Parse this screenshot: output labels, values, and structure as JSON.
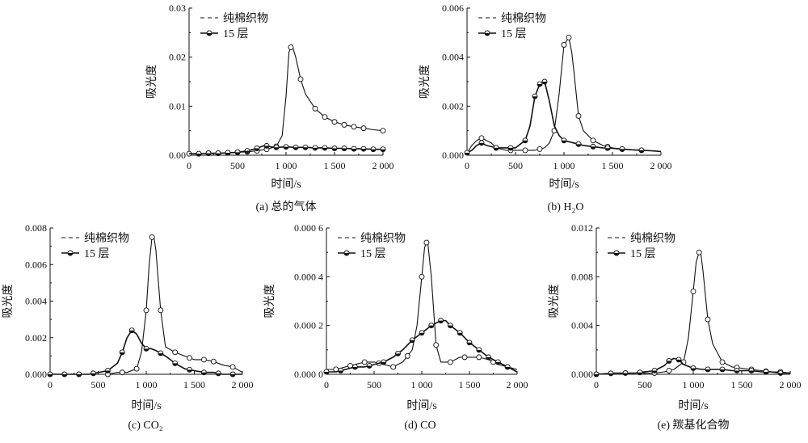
{
  "chart_data": [
    {
      "type": "line",
      "caption": "(a) 总的气体",
      "xlabel": "时间/s",
      "ylabel": "吸光度",
      "xlim": [
        0,
        2000
      ],
      "ylim": [
        0,
        0.03
      ],
      "xticks": [
        0,
        500,
        1000,
        1500,
        2000
      ],
      "xtick_labels": [
        "0",
        "500",
        "1 000",
        "1 500",
        "2 000"
      ],
      "yticks": [
        0,
        0.01,
        0.02,
        0.03
      ],
      "ytick_labels": [
        "0.00",
        "0.01",
        "0.02",
        "0.03"
      ],
      "legend_position": "top-left",
      "series": [
        {
          "name": "纯棉织物",
          "marker": "open",
          "x": [
            0,
            100,
            200,
            300,
            400,
            500,
            600,
            700,
            800,
            900,
            960,
            1000,
            1030,
            1060,
            1100,
            1150,
            1200,
            1300,
            1400,
            1500,
            1600,
            1700,
            1800,
            1900,
            2000
          ],
          "y": [
            0.0003,
            0.0003,
            0.0004,
            0.0004,
            0.0005,
            0.0006,
            0.0007,
            0.0009,
            0.0012,
            0.0018,
            0.004,
            0.012,
            0.021,
            0.0225,
            0.02,
            0.0155,
            0.0125,
            0.0095,
            0.0078,
            0.0068,
            0.0062,
            0.0058,
            0.0055,
            0.0052,
            0.005
          ],
          "marker_x": [
            0,
            100,
            200,
            300,
            400,
            500,
            600,
            700,
            800,
            900,
            1050,
            1150,
            1300,
            1400,
            1500,
            1600,
            1700,
            1800,
            2000
          ]
        },
        {
          "name": "15 层",
          "marker": "half",
          "x": [
            0,
            100,
            200,
            300,
            400,
            500,
            600,
            700,
            780,
            850,
            900,
            1000,
            1100,
            1200,
            1300,
            1400,
            1500,
            1600,
            1700,
            1800,
            1900,
            2000
          ],
          "y": [
            0.0003,
            0.0003,
            0.0004,
            0.0004,
            0.0005,
            0.0006,
            0.0009,
            0.0014,
            0.002,
            0.0017,
            0.0016,
            0.0017,
            0.0016,
            0.0016,
            0.0015,
            0.0015,
            0.0014,
            0.0014,
            0.0013,
            0.0013,
            0.0012,
            0.0012
          ],
          "marker_x": [
            100,
            200,
            300,
            400,
            500,
            600,
            700,
            800,
            900,
            1000,
            1100,
            1200,
            1300,
            1400,
            1500,
            1600,
            1700,
            1800,
            1900,
            2000
          ]
        }
      ]
    },
    {
      "type": "line",
      "caption": "(b) H₂O",
      "xlabel": "时间/s",
      "ylabel": "吸光度",
      "xlim": [
        0,
        2000
      ],
      "ylim": [
        0,
        0.006
      ],
      "xticks": [
        0,
        500,
        1000,
        1500,
        2000
      ],
      "xtick_labels": [
        "0",
        "500",
        "1 000",
        "1 500",
        "2 000"
      ],
      "yticks": [
        0,
        0.002,
        0.004,
        0.006
      ],
      "ytick_labels": [
        "0.000",
        "0.002",
        "0.004",
        "0.006"
      ],
      "legend_position": "top-left",
      "series": [
        {
          "name": "纯棉织物",
          "marker": "open",
          "x": [
            0,
            50,
            100,
            150,
            200,
            250,
            300,
            400,
            500,
            600,
            700,
            800,
            850,
            900,
            950,
            1000,
            1050,
            1080,
            1100,
            1150,
            1200,
            1300,
            1400,
            1500,
            1600,
            1700,
            1800,
            1900,
            2000
          ],
          "y": [
            0.0001,
            0.0004,
            0.0006,
            0.0007,
            0.0006,
            0.0005,
            0.0003,
            0.0002,
            0.0002,
            0.0002,
            0.0002,
            0.0003,
            0.0005,
            0.001,
            0.0025,
            0.0045,
            0.0048,
            0.0042,
            0.0035,
            0.0016,
            0.001,
            0.0006,
            0.0004,
            0.0003,
            0.00025,
            0.00022,
            0.0002,
            0.00018,
            0.00015
          ],
          "marker_x": [
            150,
            300,
            450,
            600,
            750,
            900,
            1000,
            1050,
            1150,
            1300,
            1450,
            1600,
            1800
          ]
        },
        {
          "name": "15 层",
          "marker": "half",
          "x": [
            0,
            50,
            100,
            150,
            200,
            300,
            400,
            500,
            600,
            650,
            700,
            750,
            800,
            850,
            900,
            950,
            1000,
            1100,
            1200,
            1300,
            1400,
            1500,
            1600,
            1700,
            1800,
            1900,
            2000
          ],
          "y": [
            0.0001,
            0.0002,
            0.0004,
            0.0005,
            0.0004,
            0.0003,
            0.0003,
            0.0003,
            0.0006,
            0.0012,
            0.0024,
            0.0029,
            0.003,
            0.0022,
            0.0012,
            0.0008,
            0.0006,
            0.0005,
            0.0004,
            0.00035,
            0.0003,
            0.00028,
            0.00025,
            0.00022,
            0.0002,
            0.00018,
            0.00015
          ],
          "marker_x": [
            0,
            150,
            300,
            450,
            600,
            700,
            750,
            800,
            1000,
            1150,
            1300,
            1450,
            1600,
            1800
          ]
        }
      ]
    },
    {
      "type": "line",
      "caption": "(c) CO₂",
      "xlabel": "时间/s",
      "ylabel": "吸光度",
      "xlim": [
        0,
        2000
      ],
      "ylim": [
        0,
        0.008
      ],
      "xticks": [
        0,
        500,
        1000,
        1500,
        2000
      ],
      "xtick_labels": [
        "0",
        "500",
        "1 000",
        "1 500",
        "2 000"
      ],
      "yticks": [
        0,
        0.002,
        0.004,
        0.006,
        0.008
      ],
      "ytick_labels": [
        "0.000",
        "0.002",
        "0.004",
        "0.006",
        "0.008"
      ],
      "legend_position": "top-left",
      "series": [
        {
          "name": "纯棉织物",
          "marker": "open",
          "x": [
            0,
            200,
            400,
            600,
            700,
            800,
            900,
            950,
            1000,
            1030,
            1060,
            1080,
            1100,
            1150,
            1200,
            1300,
            1400,
            1500,
            1600,
            1700,
            1800,
            1900,
            2000
          ],
          "y": [
            0.0,
            0.0,
            0.0,
            0.0,
            0.0001,
            0.0001,
            0.0003,
            0.0012,
            0.0035,
            0.006,
            0.0075,
            0.0075,
            0.0068,
            0.0035,
            0.0015,
            0.0012,
            0.001,
            0.0008,
            0.0008,
            0.0007,
            0.0005,
            0.0004,
            0.0001
          ],
          "marker_x": [
            600,
            750,
            900,
            1000,
            1060,
            1150,
            1300,
            1450,
            1600,
            1700,
            1900
          ]
        },
        {
          "name": "15 层",
          "marker": "half",
          "x": [
            0,
            200,
            400,
            600,
            700,
            750,
            800,
            850,
            900,
            950,
            1000,
            1050,
            1100,
            1200,
            1300,
            1400,
            1500,
            1600,
            1700,
            1800,
            1900,
            2000
          ],
          "y": [
            0.0,
            0.0,
            0.0,
            0.0002,
            0.0006,
            0.0012,
            0.002,
            0.0024,
            0.0022,
            0.0017,
            0.0014,
            0.0014,
            0.0013,
            0.001,
            0.0006,
            0.0003,
            0.0002,
            0.0001,
            0.0001,
            0.0,
            0.0,
            0.0
          ],
          "marker_x": [
            0,
            150,
            300,
            450,
            600,
            750,
            850,
            1000,
            1150,
            1300,
            1450,
            1600,
            1750,
            1900
          ]
        }
      ]
    },
    {
      "type": "line",
      "caption": "(d) CO",
      "xlabel": "时间/s",
      "ylabel": "吸光度",
      "xlim": [
        0,
        2000
      ],
      "ylim": [
        0,
        0.0006
      ],
      "xticks": [
        0,
        500,
        1000,
        1500,
        2000
      ],
      "xtick_labels": [
        "0",
        "500",
        "1 000",
        "1 500",
        "2 000"
      ],
      "yticks": [
        0,
        0.0002,
        0.0004,
        0.0006
      ],
      "ytick_labels": [
        "0.000 0",
        "0.000 2",
        "0.000 4",
        "0.000 6"
      ],
      "legend_position": "top-left",
      "series": [
        {
          "name": "纯棉织物",
          "marker": "open",
          "x": [
            0,
            100,
            200,
            300,
            400,
            500,
            600,
            700,
            800,
            900,
            950,
            1000,
            1030,
            1060,
            1100,
            1150,
            1200,
            1300,
            1400,
            1500,
            1600,
            1700,
            1800,
            1900,
            2000
          ],
          "y": [
            2e-05,
            2e-05,
            3e-05,
            4e-05,
            5e-05,
            5e-05,
            4e-05,
            3e-05,
            5e-05,
            0.0001,
            0.0002,
            0.0004,
            0.00052,
            0.00055,
            0.0004,
            0.00012,
            5e-05,
            5e-05,
            7e-05,
            7e-05,
            7e-05,
            6e-05,
            4e-05,
            3e-05,
            2e-05
          ],
          "marker_x": [
            100,
            250,
            400,
            550,
            700,
            850,
            1000,
            1050,
            1150,
            1300,
            1450,
            1600,
            1750,
            1900
          ]
        },
        {
          "name": "15 层",
          "marker": "half",
          "x": [
            0,
            100,
            200,
            300,
            400,
            500,
            600,
            700,
            800,
            900,
            1000,
            1100,
            1200,
            1250,
            1300,
            1400,
            1500,
            1600,
            1700,
            1800,
            1900,
            2000
          ],
          "y": [
            1e-05,
            1e-05,
            2e-05,
            3e-05,
            3e-05,
            4e-05,
            5e-05,
            7e-05,
            0.0001,
            0.00014,
            0.00017,
            0.0002,
            0.00022,
            0.00022,
            0.0002,
            0.00017,
            0.00013,
            0.0001,
            7e-05,
            5e-05,
            3e-05,
            1e-05
          ],
          "marker_x": [
            0,
            150,
            300,
            450,
            600,
            750,
            900,
            1000,
            1100,
            1200,
            1300,
            1400,
            1500,
            1600,
            1700,
            1800,
            1900
          ]
        }
      ]
    },
    {
      "type": "line",
      "caption": "(e) 羰基化合物",
      "xlabel": "时间/s",
      "ylabel": "吸光度",
      "xlim": [
        0,
        2000
      ],
      "ylim": [
        0,
        0.012
      ],
      "xticks": [
        0,
        500,
        1000,
        1500,
        2000
      ],
      "xtick_labels": [
        "0",
        "500",
        "1 000",
        "1 500",
        "2 000"
      ],
      "yticks": [
        0,
        0.004,
        0.008,
        0.012
      ],
      "ytick_labels": [
        "0.000",
        "0.004",
        "0.008",
        "0.012"
      ],
      "legend_position": "top-left",
      "series": [
        {
          "name": "纯棉织物",
          "marker": "open",
          "x": [
            0,
            200,
            400,
            600,
            700,
            800,
            900,
            950,
            1000,
            1030,
            1060,
            1080,
            1100,
            1150,
            1200,
            1300,
            1400,
            1500,
            1600,
            1700,
            1800,
            1900,
            2000
          ],
          "y": [
            0.0,
            0.0001,
            0.0001,
            0.0001,
            0.0002,
            0.0004,
            0.001,
            0.003,
            0.0068,
            0.0092,
            0.01,
            0.0098,
            0.0085,
            0.0045,
            0.0025,
            0.001,
            0.0006,
            0.0005,
            0.0004,
            0.0003,
            0.0002,
            0.0002,
            0.0001
          ],
          "marker_x": [
            600,
            750,
            900,
            1000,
            1060,
            1150,
            1300,
            1450,
            1600,
            1750,
            1900
          ]
        },
        {
          "name": "15 层",
          "marker": "half",
          "x": [
            0,
            200,
            400,
            600,
            700,
            750,
            800,
            850,
            900,
            1000,
            1100,
            1200,
            1300,
            1400,
            1500,
            1600,
            1700,
            1800,
            1900,
            2000
          ],
          "y": [
            0.0,
            0.0001,
            0.0001,
            0.0003,
            0.0007,
            0.0011,
            0.0013,
            0.0012,
            0.0008,
            0.0005,
            0.0004,
            0.0004,
            0.0004,
            0.0003,
            0.0003,
            0.0003,
            0.0002,
            0.0002,
            0.0001,
            0.0001
          ],
          "marker_x": [
            0,
            150,
            300,
            450,
            600,
            750,
            850,
            1000,
            1150,
            1300,
            1450,
            1600,
            1750,
            1900
          ]
        }
      ]
    }
  ]
}
